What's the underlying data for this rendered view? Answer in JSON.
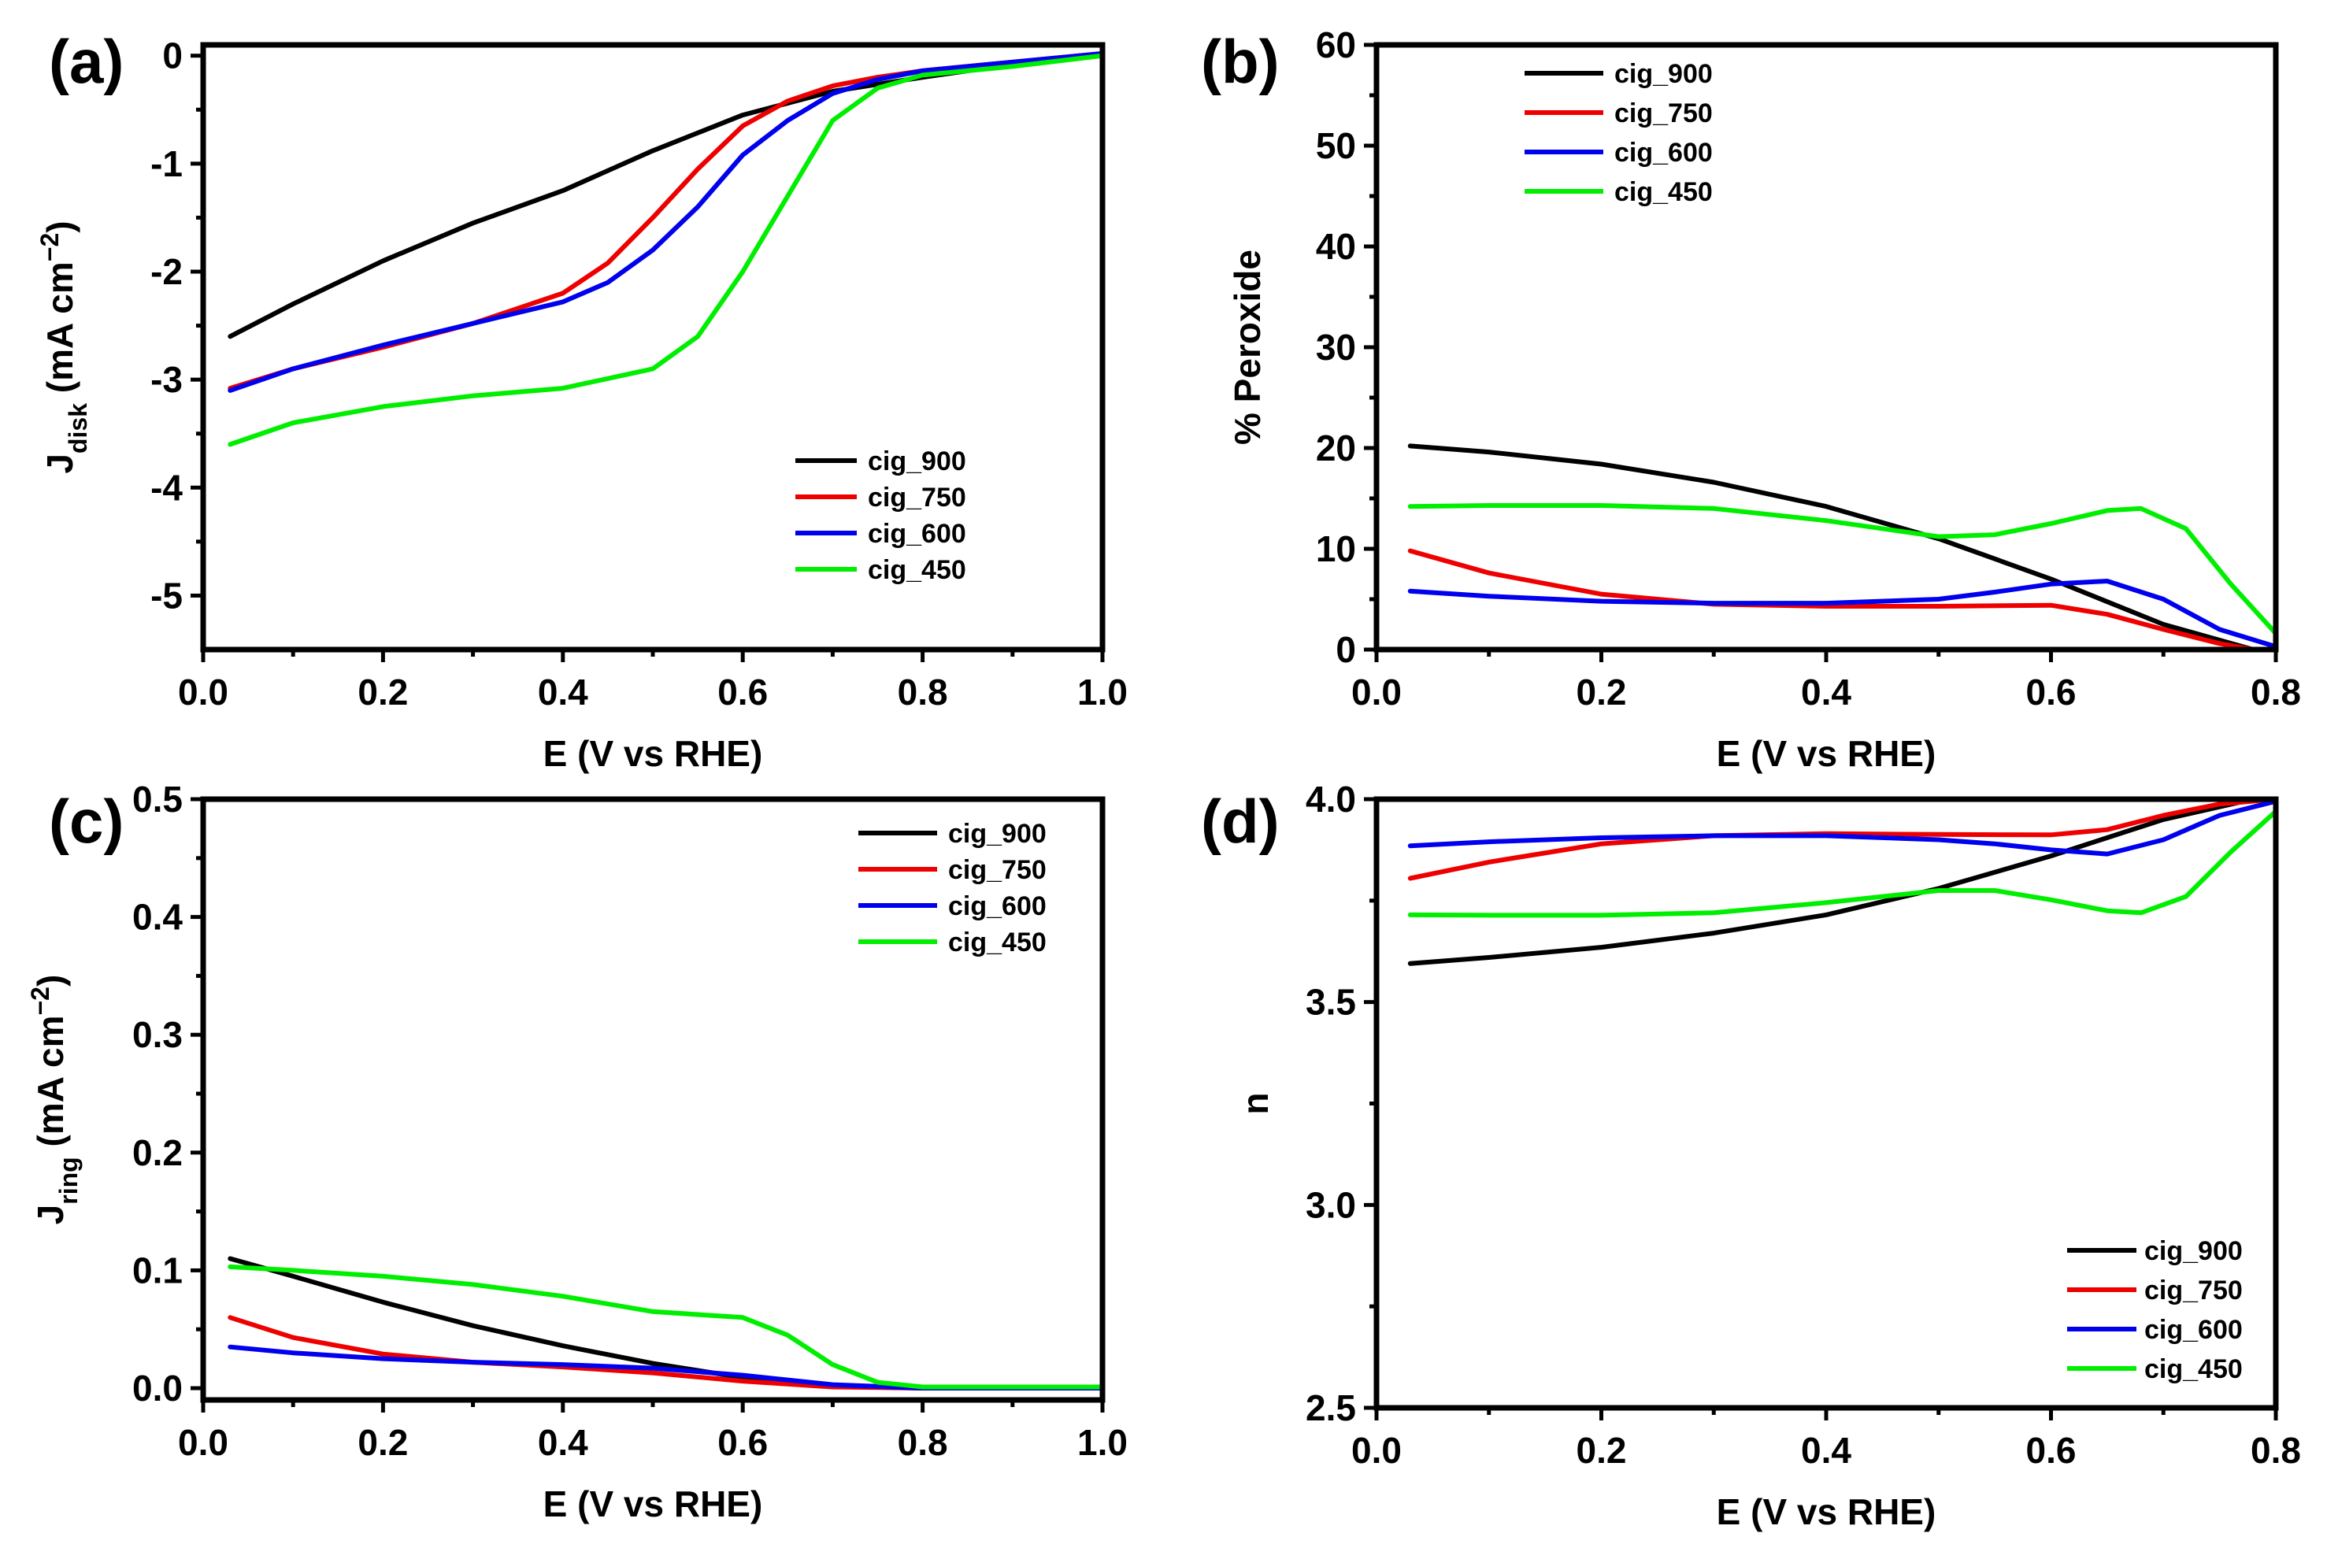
{
  "figure": {
    "title": ""
  },
  "colors": {
    "cig_900": "#000000",
    "cig_750": "#ee0000",
    "cig_600": "#0000ee",
    "cig_450": "#00ee00"
  },
  "chart_data": [
    {
      "type": "line",
      "panel_label": "(a)",
      "title": "",
      "xlabel": "E (V vs RHE)",
      "ylabel_main": "J",
      "ylabel_sub": "disk",
      "ylabel_unit": " (mA cm",
      "ylabel_sup": "−2",
      "ylabel_close": ")",
      "xlim": [
        0.0,
        1.0
      ],
      "ylim": [
        -5.5,
        0.1
      ],
      "xticks": [
        0.0,
        0.2,
        0.4,
        0.6,
        0.8,
        1.0
      ],
      "xtick_labels": [
        "0.0",
        "0.2",
        "0.4",
        "0.6",
        "0.8",
        "1.0"
      ],
      "yticks": [
        -5,
        -4,
        -3,
        -2,
        -1,
        0
      ],
      "ytick_labels": [
        "-5",
        "-4",
        "-3",
        "-2",
        "-1",
        "0"
      ],
      "legend_position": "lower-right",
      "series": [
        {
          "name": "cig_900",
          "color": "#000000",
          "x": [
            0.03,
            0.1,
            0.2,
            0.3,
            0.4,
            0.5,
            0.6,
            0.7,
            0.8,
            0.9,
            1.0
          ],
          "y": [
            -2.6,
            -2.3,
            -1.9,
            -1.55,
            -1.25,
            -0.88,
            -0.55,
            -0.33,
            -0.2,
            -0.08,
            0.02
          ]
        },
        {
          "name": "cig_750",
          "color": "#ee0000",
          "x": [
            0.03,
            0.1,
            0.2,
            0.3,
            0.4,
            0.45,
            0.5,
            0.55,
            0.6,
            0.65,
            0.7,
            0.75,
            0.8,
            0.9,
            1.0
          ],
          "y": [
            -3.08,
            -2.9,
            -2.7,
            -2.48,
            -2.2,
            -1.92,
            -1.5,
            -1.05,
            -0.65,
            -0.42,
            -0.28,
            -0.2,
            -0.14,
            -0.06,
            0.02
          ]
        },
        {
          "name": "cig_600",
          "color": "#0000ee",
          "x": [
            0.03,
            0.1,
            0.2,
            0.3,
            0.4,
            0.45,
            0.5,
            0.55,
            0.6,
            0.65,
            0.7,
            0.75,
            0.8,
            0.9,
            1.0
          ],
          "y": [
            -3.1,
            -2.9,
            -2.68,
            -2.48,
            -2.28,
            -2.1,
            -1.8,
            -1.4,
            -0.92,
            -0.6,
            -0.35,
            -0.22,
            -0.14,
            -0.06,
            0.02
          ]
        },
        {
          "name": "cig_450",
          "color": "#00ee00",
          "x": [
            0.03,
            0.1,
            0.2,
            0.3,
            0.4,
            0.5,
            0.55,
            0.6,
            0.65,
            0.7,
            0.75,
            0.8,
            0.9,
            1.0
          ],
          "y": [
            -3.6,
            -3.4,
            -3.25,
            -3.15,
            -3.08,
            -2.9,
            -2.6,
            -2.0,
            -1.3,
            -0.6,
            -0.3,
            -0.18,
            -0.1,
            0.0
          ]
        }
      ]
    },
    {
      "type": "line",
      "panel_label": "(b)",
      "title": "",
      "xlabel": "E (V vs RHE)",
      "ylabel_main": "% Peroxide",
      "ylabel_sub": "",
      "ylabel_unit": "",
      "ylabel_sup": "",
      "ylabel_close": "",
      "xlim": [
        0.0,
        0.8
      ],
      "ylim": [
        0,
        60
      ],
      "xticks": [
        0.0,
        0.2,
        0.4,
        0.6,
        0.8
      ],
      "xtick_labels": [
        "0.0",
        "0.2",
        "0.4",
        "0.6",
        "0.8"
      ],
      "yticks": [
        0,
        10,
        20,
        30,
        40,
        50,
        60
      ],
      "ytick_labels": [
        "0",
        "10",
        "20",
        "30",
        "40",
        "50",
        "60"
      ],
      "legend_position": "top-left",
      "series": [
        {
          "name": "cig_900",
          "color": "#000000",
          "x": [
            0.03,
            0.1,
            0.2,
            0.3,
            0.4,
            0.5,
            0.6,
            0.7,
            0.78
          ],
          "y": [
            20.2,
            19.6,
            18.4,
            16.6,
            14.2,
            11.0,
            7.0,
            2.5,
            0.0
          ]
        },
        {
          "name": "cig_750",
          "color": "#ee0000",
          "x": [
            0.03,
            0.1,
            0.2,
            0.3,
            0.4,
            0.5,
            0.6,
            0.65,
            0.7,
            0.75,
            0.78
          ],
          "y": [
            9.8,
            7.6,
            5.5,
            4.5,
            4.3,
            4.3,
            4.4,
            3.5,
            2.0,
            0.6,
            0.0
          ]
        },
        {
          "name": "cig_600",
          "color": "#0000ee",
          "x": [
            0.03,
            0.1,
            0.2,
            0.3,
            0.4,
            0.5,
            0.55,
            0.6,
            0.65,
            0.7,
            0.75,
            0.8
          ],
          "y": [
            5.8,
            5.3,
            4.8,
            4.6,
            4.6,
            5.0,
            5.7,
            6.5,
            6.8,
            5.0,
            2.0,
            0.3
          ]
        },
        {
          "name": "cig_450",
          "color": "#00ee00",
          "x": [
            0.03,
            0.1,
            0.2,
            0.3,
            0.4,
            0.5,
            0.55,
            0.6,
            0.65,
            0.68,
            0.72,
            0.76,
            0.8
          ],
          "y": [
            14.2,
            14.3,
            14.3,
            14.0,
            12.8,
            11.2,
            11.4,
            12.5,
            13.8,
            14.0,
            12.0,
            6.5,
            1.6
          ]
        }
      ]
    },
    {
      "type": "line",
      "panel_label": "(c)",
      "title": "",
      "xlabel": "E (V vs RHE)",
      "ylabel_main": "J",
      "ylabel_sub": "ring",
      "ylabel_unit": " (mA cm",
      "ylabel_sup": "−2",
      "ylabel_close": ")",
      "xlim": [
        0.0,
        1.0
      ],
      "ylim": [
        -0.01,
        0.5
      ],
      "xticks": [
        0.0,
        0.2,
        0.4,
        0.6,
        0.8,
        1.0
      ],
      "xtick_labels": [
        "0.0",
        "0.2",
        "0.4",
        "0.6",
        "0.8",
        "1.0"
      ],
      "yticks": [
        0.0,
        0.1,
        0.2,
        0.3,
        0.4,
        0.5
      ],
      "ytick_labels": [
        "0.0",
        "0.1",
        "0.2",
        "0.3",
        "0.4",
        "0.5"
      ],
      "legend_position": "top-right",
      "series": [
        {
          "name": "cig_900",
          "color": "#000000",
          "x": [
            0.03,
            0.1,
            0.2,
            0.3,
            0.4,
            0.5,
            0.6,
            0.7,
            0.8,
            1.0
          ],
          "y": [
            0.11,
            0.095,
            0.073,
            0.053,
            0.036,
            0.021,
            0.009,
            0.002,
            0.0,
            0.0
          ]
        },
        {
          "name": "cig_750",
          "color": "#ee0000",
          "x": [
            0.03,
            0.1,
            0.2,
            0.3,
            0.4,
            0.5,
            0.6,
            0.7,
            0.8,
            1.0
          ],
          "y": [
            0.06,
            0.043,
            0.029,
            0.022,
            0.018,
            0.013,
            0.006,
            0.001,
            0.0,
            0.0
          ]
        },
        {
          "name": "cig_600",
          "color": "#0000ee",
          "x": [
            0.03,
            0.1,
            0.2,
            0.3,
            0.4,
            0.5,
            0.6,
            0.7,
            0.8,
            1.0
          ],
          "y": [
            0.035,
            0.03,
            0.025,
            0.022,
            0.02,
            0.017,
            0.011,
            0.003,
            0.0,
            0.0
          ]
        },
        {
          "name": "cig_450",
          "color": "#00ee00",
          "x": [
            0.03,
            0.1,
            0.2,
            0.3,
            0.4,
            0.5,
            0.6,
            0.65,
            0.7,
            0.75,
            0.8,
            1.0
          ],
          "y": [
            0.103,
            0.1,
            0.095,
            0.088,
            0.078,
            0.065,
            0.06,
            0.045,
            0.02,
            0.005,
            0.001,
            0.001
          ]
        }
      ]
    },
    {
      "type": "line",
      "panel_label": "(d)",
      "title": "",
      "xlabel": "E (V vs RHE)",
      "ylabel_main": "n",
      "ylabel_sub": "",
      "ylabel_unit": "",
      "ylabel_sup": "",
      "ylabel_close": "",
      "xlim": [
        0.0,
        0.8
      ],
      "ylim": [
        2.5,
        4.0
      ],
      "xticks": [
        0.0,
        0.2,
        0.4,
        0.6,
        0.8
      ],
      "xtick_labels": [
        "0.0",
        "0.2",
        "0.4",
        "0.6",
        "0.8"
      ],
      "yticks": [
        2.5,
        3.0,
        3.5,
        4.0
      ],
      "ytick_labels": [
        "2.5",
        "3.0",
        "3.5",
        "4.0"
      ],
      "legend_position": "bottom-right",
      "series": [
        {
          "name": "cig_900",
          "color": "#000000",
          "x": [
            0.03,
            0.1,
            0.2,
            0.3,
            0.4,
            0.5,
            0.6,
            0.7,
            0.78
          ],
          "y": [
            3.595,
            3.61,
            3.635,
            3.67,
            3.715,
            3.78,
            3.86,
            3.95,
            4.0
          ]
        },
        {
          "name": "cig_750",
          "color": "#ee0000",
          "x": [
            0.03,
            0.1,
            0.2,
            0.3,
            0.4,
            0.5,
            0.6,
            0.65,
            0.7,
            0.75,
            0.8
          ],
          "y": [
            3.805,
            3.845,
            3.89,
            3.91,
            3.915,
            3.913,
            3.912,
            3.925,
            3.96,
            3.988,
            4.0
          ]
        },
        {
          "name": "cig_600",
          "color": "#0000ee",
          "x": [
            0.03,
            0.1,
            0.2,
            0.3,
            0.4,
            0.5,
            0.55,
            0.6,
            0.65,
            0.7,
            0.75,
            0.8
          ],
          "y": [
            3.885,
            3.895,
            3.905,
            3.91,
            3.91,
            3.9,
            3.89,
            3.875,
            3.865,
            3.9,
            3.96,
            3.995
          ]
        },
        {
          "name": "cig_450",
          "color": "#00ee00",
          "x": [
            0.03,
            0.1,
            0.2,
            0.3,
            0.4,
            0.5,
            0.55,
            0.6,
            0.65,
            0.68,
            0.72,
            0.76,
            0.8
          ],
          "y": [
            3.715,
            3.714,
            3.714,
            3.72,
            3.745,
            3.775,
            3.775,
            3.752,
            3.725,
            3.72,
            3.76,
            3.87,
            3.97
          ]
        }
      ]
    }
  ]
}
